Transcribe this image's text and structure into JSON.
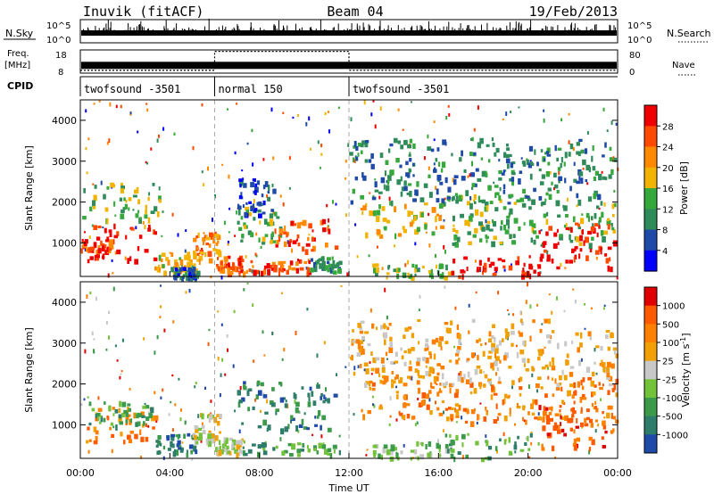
{
  "header": {
    "radar": "Inuvik (fitACF)",
    "beam": "Beam 04",
    "date": "19/Feb/2013"
  },
  "colors": {
    "background": "#ffffff",
    "axis": "#000000",
    "power_scale": [
      "#0000ff",
      "#1f4aa8",
      "#2f8c5a",
      "#37a83c",
      "#f2b400",
      "#ff8a00",
      "#ff4a00",
      "#ee0000"
    ],
    "velocity_scale": [
      "#1f4aa8",
      "#2e7d6a",
      "#3c9a4b",
      "#72c23a",
      "#c8c8c8",
      "#f0a000",
      "#ff8000",
      "#ff5a00",
      "#e00000"
    ]
  },
  "chart_data": [
    {
      "type": "line",
      "panel": "noise",
      "left_label": "N.Sky",
      "right_label": "N.Search",
      "left_ticks": [
        "10^5",
        "10^0"
      ],
      "right_ticks": [
        "10^5",
        "10^0"
      ],
      "scale": "log",
      "ylim": [
        1,
        100000
      ]
    },
    {
      "type": "line",
      "panel": "frequency",
      "left_label_line1": "Freq.",
      "left_label_line2": "[MHz]",
      "right_label": "Nave",
      "left_ticks": [
        "18",
        "8"
      ],
      "right_ticks": [
        "80",
        "0"
      ],
      "freq_ylim": [
        8,
        18
      ],
      "nave_ylim": [
        0,
        80
      ],
      "series": [
        {
          "name": "Freq.",
          "segments": [
            {
              "x": [
                0,
                24
              ],
              "y": 11.2
            }
          ]
        },
        {
          "name": "Nave",
          "segments": [
            {
              "x": [
                0,
                6
              ],
              "y": 7
            },
            {
              "x": [
                6,
                12
              ],
              "y": 78
            },
            {
              "x": [
                12,
                24
              ],
              "y": 7
            }
          ]
        }
      ]
    },
    {
      "type": "table",
      "panel": "cpid",
      "label": "CPID",
      "segments": [
        {
          "start": 0,
          "end": 6,
          "name": "twofsound -3501"
        },
        {
          "start": 6,
          "end": 12,
          "name": "normal 150"
        },
        {
          "start": 12,
          "end": 24,
          "name": "twofsound -3501"
        }
      ]
    },
    {
      "type": "heatmap",
      "panel": "power",
      "ylabel": "Slant Range [km]",
      "colorbar_label": "Power [dB]",
      "colorbar_ticks": [
        "28",
        "24",
        "20",
        "16",
        "12",
        "8",
        "4"
      ],
      "colorbar_range": [
        0,
        32
      ],
      "yticks": [
        "1000",
        "2000",
        "3000",
        "4000"
      ],
      "ylim": [
        180,
        4500
      ],
      "xlim": [
        0,
        24
      ],
      "regions": [
        {
          "x": [
            0.2,
            3.3
          ],
          "y": [
            600,
            1500
          ],
          "c": 7
        },
        {
          "x": [
            0.0,
            1.4
          ],
          "y": [
            800,
            1100
          ],
          "c": 6
        },
        {
          "x": [
            3.3,
            5.2
          ],
          "y": [
            300,
            800
          ],
          "c": 4
        },
        {
          "x": [
            5.0,
            6.2
          ],
          "y": [
            600,
            1300
          ],
          "c": 5
        },
        {
          "x": [
            4.0,
            5.2
          ],
          "y": [
            180,
            420
          ],
          "c": 1
        },
        {
          "x": [
            6.0,
            7.2
          ],
          "y": [
            300,
            700
          ],
          "c": 6
        },
        {
          "x": [
            7.0,
            9.0
          ],
          "y": [
            1000,
            1900
          ],
          "c": 3
        },
        {
          "x": [
            7.0,
            8.6
          ],
          "y": [
            1700,
            2600
          ],
          "c": 1
        },
        {
          "x": [
            8.5,
            11.4
          ],
          "y": [
            800,
            1700
          ],
          "c": 6
        },
        {
          "x": [
            7.2,
            10.3
          ],
          "y": [
            300,
            600
          ],
          "c": 6
        },
        {
          "x": [
            10.2,
            11.6
          ],
          "y": [
            300,
            700
          ],
          "c": 2
        },
        {
          "x": [
            12.5,
            16.8
          ],
          "y": [
            1200,
            2000
          ],
          "c": 4
        },
        {
          "x": [
            13.0,
            16.5
          ],
          "y": [
            180,
            500
          ],
          "c": 3
        },
        {
          "x": [
            16.2,
            20.5
          ],
          "y": [
            180,
            700
          ],
          "c": 7
        },
        {
          "x": [
            16.5,
            23.9
          ],
          "y": [
            1000,
            2200
          ],
          "c": 3
        },
        {
          "x": [
            20.4,
            23.9
          ],
          "y": [
            400,
            1500
          ],
          "c": 7
        },
        {
          "x": [
            12.0,
            23.9
          ],
          "y": [
            2000,
            3600
          ],
          "c": 2
        },
        {
          "x": [
            0.0,
            3.5
          ],
          "y": [
            1600,
            2500
          ],
          "c": 3
        }
      ]
    },
    {
      "type": "heatmap",
      "panel": "velocity",
      "ylabel": "Slant Range [km]",
      "colorbar_label": "Velocity [m s^-1]",
      "colorbar_ticks": [
        "1000",
        "500",
        "100",
        "25",
        "-25",
        "-100",
        "-500",
        "-1000"
      ],
      "yticks": [
        "1000",
        "2000",
        "3000",
        "4000"
      ],
      "ylim": [
        180,
        4500
      ],
      "xlim": [
        0,
        24
      ],
      "xticks": [
        "00:00",
        "04:00",
        "08:00",
        "12:00",
        "16:00",
        "20:00",
        "00:00"
      ],
      "xlabel": "Time UT",
      "regions": [
        {
          "x": [
            0.2,
            3.3
          ],
          "y": [
            600,
            1500
          ],
          "c": 6
        },
        {
          "x": [
            0.0,
            3.2
          ],
          "y": [
            1000,
            1600
          ],
          "c": 2
        },
        {
          "x": [
            3.3,
            5.2
          ],
          "y": [
            300,
            800
          ],
          "c": 1
        },
        {
          "x": [
            5.0,
            6.2
          ],
          "y": [
            600,
            1300
          ],
          "c": 4
        },
        {
          "x": [
            6.0,
            7.2
          ],
          "y": [
            300,
            700
          ],
          "c": 4
        },
        {
          "x": [
            7.0,
            11.4
          ],
          "y": [
            900,
            2100
          ],
          "c": 1
        },
        {
          "x": [
            7.2,
            11.6
          ],
          "y": [
            300,
            600
          ],
          "c": 2
        },
        {
          "x": [
            12.5,
            16.8
          ],
          "y": [
            1200,
            2100
          ],
          "c": 6
        },
        {
          "x": [
            13.0,
            16.5
          ],
          "y": [
            180,
            600
          ],
          "c": 3
        },
        {
          "x": [
            16.2,
            20.5
          ],
          "y": [
            180,
            800
          ],
          "c": 2
        },
        {
          "x": [
            16.5,
            23.9
          ],
          "y": [
            1000,
            2200
          ],
          "c": 6
        },
        {
          "x": [
            20.4,
            23.9
          ],
          "y": [
            400,
            1500
          ],
          "c": 7
        },
        {
          "x": [
            12.0,
            23.9
          ],
          "y": [
            2000,
            3600
          ],
          "c": 5
        }
      ]
    }
  ]
}
